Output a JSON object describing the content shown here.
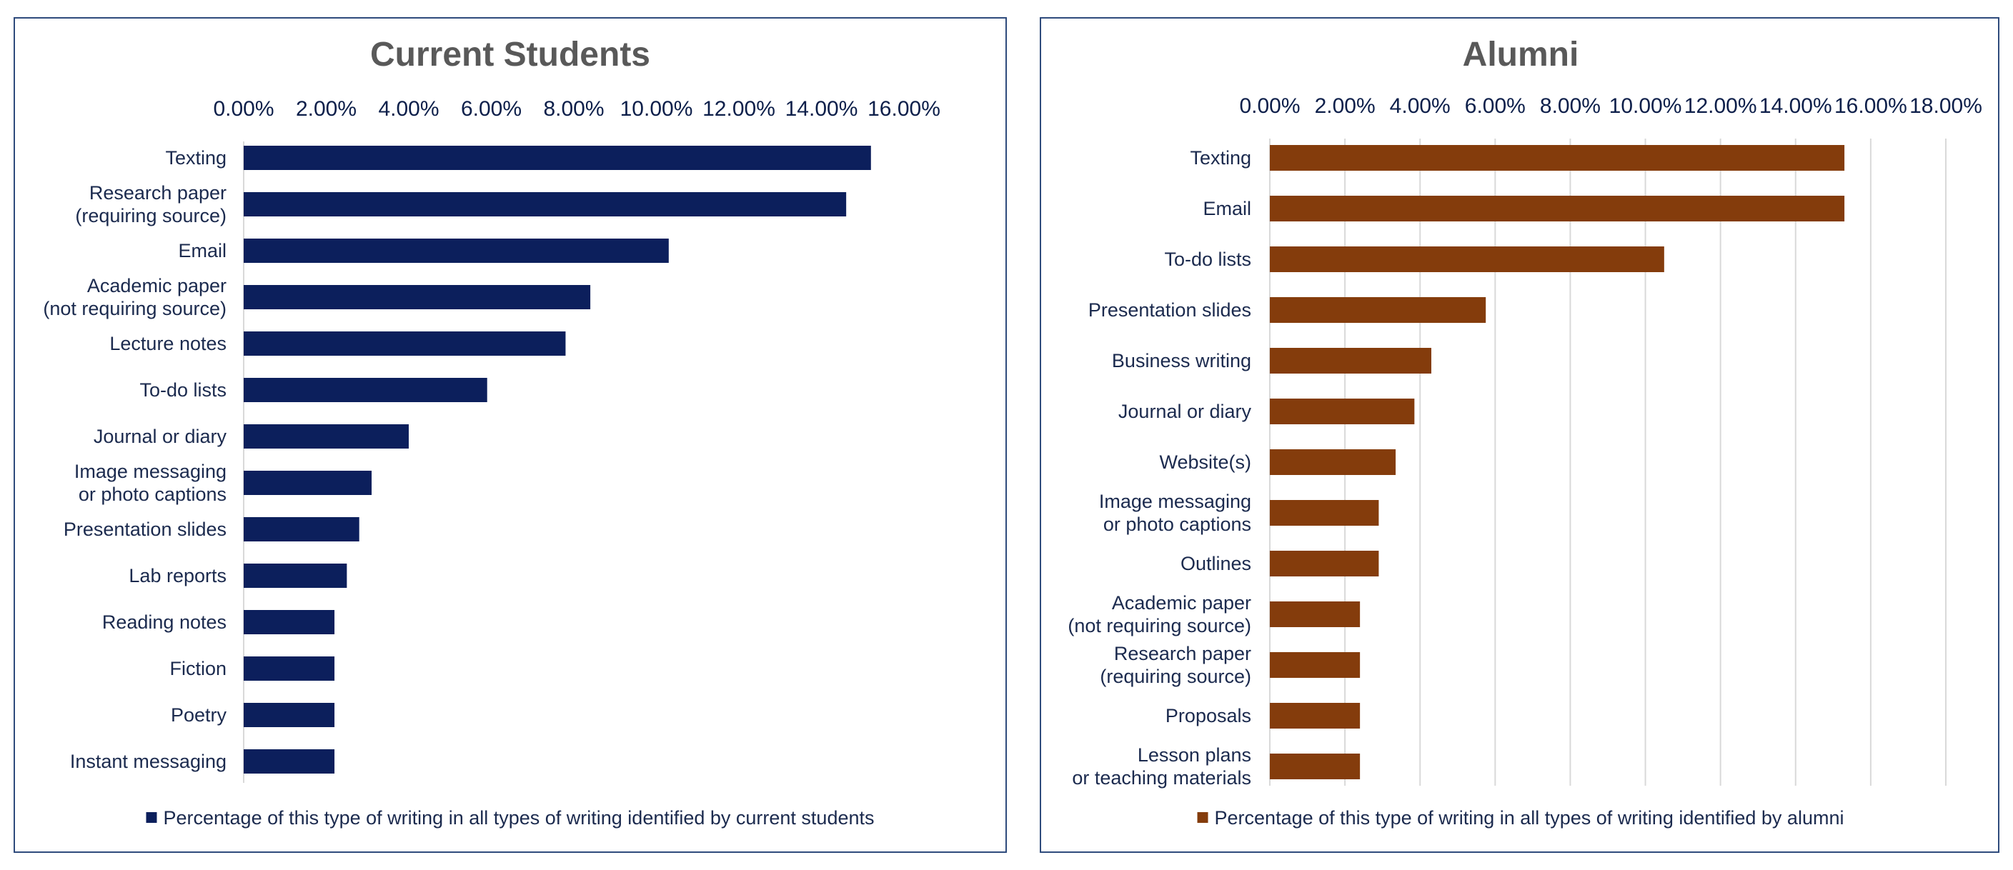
{
  "chart_data": [
    {
      "type": "bar",
      "orientation": "horizontal",
      "title": "Current Students",
      "color": "#0c1f5c",
      "xlim": [
        0,
        16
      ],
      "xticks": [
        "0.00%",
        "2.00%",
        "4.00%",
        "6.00%",
        "8.00%",
        "10.00%",
        "12.00%",
        "14.00%",
        "16.00%"
      ],
      "xtick_values": [
        0,
        2,
        4,
        6,
        8,
        10,
        12,
        14,
        16
      ],
      "grid": false,
      "categories": [
        [
          "Texting"
        ],
        [
          "Research paper",
          "(requiring source)"
        ],
        [
          "Email"
        ],
        [
          "Academic paper",
          "(not requiring source)"
        ],
        [
          "Lecture notes"
        ],
        [
          "To-do lists"
        ],
        [
          "Journal or diary"
        ],
        [
          "Image messaging",
          "or photo captions"
        ],
        [
          "Presentation slides"
        ],
        [
          "Lab reports"
        ],
        [
          "Reading notes"
        ],
        [
          "Fiction"
        ],
        [
          "Poetry"
        ],
        [
          "Instant messaging"
        ]
      ],
      "values": [
        15.2,
        14.6,
        10.3,
        8.4,
        7.8,
        5.9,
        4.0,
        3.1,
        2.8,
        2.5,
        2.2,
        2.2,
        2.2,
        2.2
      ],
      "legend": "Percentage of this type of writing in all types of writing identified by current students",
      "legend_position": "bottom"
    },
    {
      "type": "bar",
      "orientation": "horizontal",
      "title": "Alumni",
      "color": "#843c0c",
      "xlim": [
        0,
        18
      ],
      "xticks": [
        "0.00%",
        "2.00%",
        "4.00%",
        "6.00%",
        "8.00%",
        "10.00%",
        "12.00%",
        "14.00%",
        "16.00%",
        "18.00%"
      ],
      "xtick_values": [
        0,
        2,
        4,
        6,
        8,
        10,
        12,
        14,
        16,
        18
      ],
      "grid": true,
      "categories": [
        [
          "Texting"
        ],
        [
          "Email"
        ],
        [
          "To-do lists"
        ],
        [
          "Presentation slides"
        ],
        [
          "Business writing"
        ],
        [
          "Journal or diary"
        ],
        [
          "Website(s)"
        ],
        [
          "Image messaging",
          "or photo captions"
        ],
        [
          "Outlines"
        ],
        [
          "Academic paper",
          "(not requiring source)"
        ],
        [
          "Research paper",
          "(requiring source)"
        ],
        [
          "Proposals"
        ],
        [
          "Lesson plans",
          "or teaching materials"
        ]
      ],
      "values": [
        15.3,
        15.3,
        10.5,
        5.75,
        4.3,
        3.85,
        3.35,
        2.9,
        2.9,
        2.4,
        2.4,
        2.4,
        2.4
      ],
      "legend": "Percentage of this type of writing in all types of writing identified by alumni",
      "legend_position": "bottom"
    }
  ]
}
